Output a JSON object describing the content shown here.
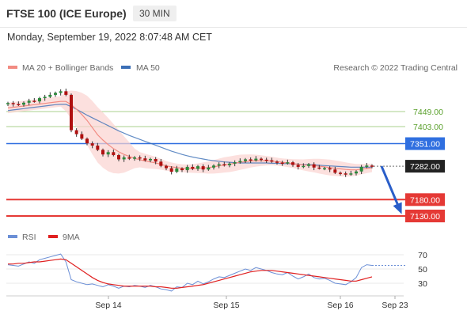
{
  "header": {
    "instrument": "FTSE 100 (ICE Europe)",
    "timeframe": "30 MIN",
    "datetime": "Monday, September 19, 2022 8:07:48 AM CET"
  },
  "legend": {
    "ma20": "MA 20 + Bollinger Bands",
    "ma50": "MA 50",
    "copyright": "Research © 2022 Trading Central",
    "rsi": "RSI",
    "ma9": "9MA",
    "colors": {
      "ma20": "#f28b82",
      "ma50": "#3b6fb6",
      "rsi": "#6b8fd6",
      "ma9": "#e02020"
    }
  },
  "chart_data": {
    "type": "candlestick",
    "x_ticks": [
      "Sep 14",
      "Sep 15",
      "Sep 16",
      "Sep 23"
    ],
    "levels": [
      {
        "value": 7449.0,
        "label": "7449.00",
        "color": "#a9d18e",
        "kind": "resistance"
      },
      {
        "value": 7403.0,
        "label": "7403.00",
        "color": "#a9d18e",
        "kind": "resistance"
      },
      {
        "value": 7351.0,
        "label": "7351.00",
        "color": "#2f6fe0",
        "kind": "pivot"
      },
      {
        "value": 7282.0,
        "label": "7282.00",
        "color": "#222222",
        "kind": "last"
      },
      {
        "value": 7180.0,
        "label": "7180.00",
        "color": "#e53935",
        "kind": "support"
      },
      {
        "value": 7130.0,
        "label": "7130.00",
        "color": "#e53935",
        "kind": "support"
      }
    ],
    "last_price": 7282.0,
    "forecast_target": 7130.0,
    "close": [
      7475,
      7472,
      7470,
      7476,
      7482,
      7480,
      7490,
      7494,
      7500,
      7506,
      7511,
      7500,
      7392,
      7380,
      7366,
      7352,
      7345,
      7332,
      7318,
      7325,
      7316,
      7303,
      7309,
      7305,
      7309,
      7306,
      7300,
      7304,
      7296,
      7283,
      7276,
      7265,
      7275,
      7270,
      7280,
      7274,
      7282,
      7272,
      7278,
      7284,
      7288,
      7285,
      7290,
      7294,
      7298,
      7303,
      7300,
      7305,
      7302,
      7300,
      7296,
      7293,
      7291,
      7294,
      7286,
      7280,
      7283,
      7288,
      7278,
      7276,
      7276,
      7272,
      7262,
      7260,
      7257,
      7260,
      7266,
      7280,
      7284,
      7282
    ],
    "ma20": [
      7460,
      7462,
      7464,
      7466,
      7468,
      7470,
      7472,
      7474,
      7476,
      7478,
      7480,
      7480,
      7470,
      7456,
      7440,
      7422,
      7400,
      7378,
      7362,
      7348,
      7336,
      7326,
      7318,
      7312,
      7306,
      7302,
      7298,
      7295,
      7292,
      7288,
      7283,
      7280,
      7278,
      7276,
      7275,
      7275,
      7276,
      7277,
      7278,
      7280,
      7283,
      7286,
      7288,
      7291,
      7294,
      7296,
      7298,
      7299,
      7299,
      7299,
      7298,
      7296,
      7294,
      7292,
      7290,
      7288,
      7286,
      7285,
      7284,
      7282,
      7280,
      7278,
      7276,
      7274,
      7272,
      7271,
      7271,
      7273,
      7275,
      7277
    ],
    "ma50": [
      7452,
      7454,
      7456,
      7458,
      7460,
      7462,
      7464,
      7466,
      7468,
      7470,
      7471,
      7471,
      7464,
      7456,
      7447,
      7438,
      7430,
      7422,
      7414,
      7406,
      7398,
      7390,
      7383,
      7376,
      7370,
      7364,
      7358,
      7352,
      7346,
      7340,
      7334,
      7328,
      7323,
      7318,
      7314,
      7310,
      7307,
      7304,
      7301,
      7299,
      7297,
      7295,
      7294,
      7293,
      7292,
      7292,
      7292,
      7292,
      7292,
      7292,
      7291,
      7291,
      7290,
      7290,
      7289,
      7288,
      7287,
      7287,
      7286,
      7285,
      7284,
      7283,
      7282,
      7281,
      7280,
      7279,
      7279,
      7279,
      7279,
      7279
    ],
    "rsi": [
      56,
      55,
      54,
      57,
      60,
      58,
      63,
      65,
      67,
      69,
      71,
      60,
      35,
      32,
      30,
      28,
      29,
      27,
      25,
      28,
      26,
      23,
      26,
      25,
      27,
      26,
      24,
      27,
      25,
      22,
      21,
      19,
      25,
      24,
      30,
      28,
      33,
      29,
      32,
      36,
      39,
      38,
      41,
      44,
      47,
      50,
      48,
      52,
      50,
      48,
      45,
      43,
      42,
      45,
      40,
      36,
      39,
      43,
      38,
      36,
      37,
      34,
      30,
      29,
      28,
      32,
      38,
      52,
      56,
      55
    ],
    "ma9": [
      57,
      57,
      58,
      58,
      59,
      60,
      60,
      61,
      62,
      63,
      64,
      63,
      58,
      53,
      48,
      43,
      38,
      34,
      31,
      29,
      28,
      27,
      26,
      26,
      26,
      26,
      26,
      26,
      25,
      25,
      24,
      23,
      23,
      24,
      25,
      26,
      27,
      28,
      30,
      32,
      34,
      36,
      38,
      40,
      42,
      44,
      46,
      47,
      48,
      48,
      48,
      47,
      46,
      45,
      44,
      43,
      42,
      41,
      40,
      39,
      38,
      37,
      36,
      35,
      34,
      33,
      33,
      35,
      37,
      39
    ],
    "rsi_ticks": [
      70,
      50,
      30
    ],
    "price_range": [
      7100,
      7560
    ],
    "rsi_range": [
      10,
      85
    ]
  }
}
